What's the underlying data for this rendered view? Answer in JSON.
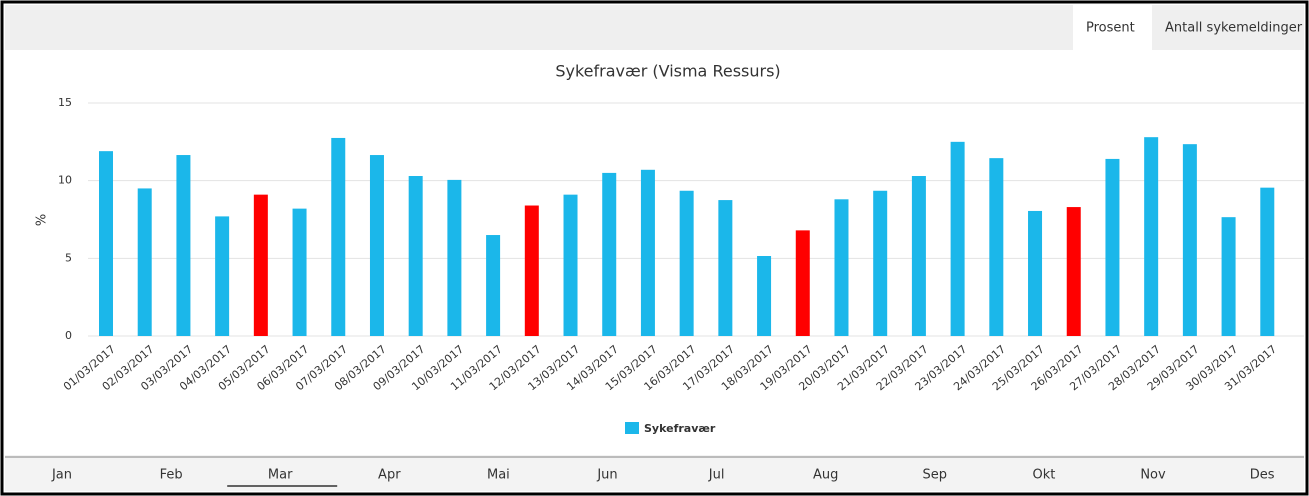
{
  "tabs": [
    "Prosent",
    "Antall sykemeldinger"
  ],
  "active_tab": 0,
  "months": [
    "Jan",
    "Feb",
    "Mar",
    "Apr",
    "Mai",
    "Jun",
    "Jul",
    "Aug",
    "Sep",
    "Okt",
    "Nov",
    "Des"
  ],
  "selected_month": 2,
  "chart_data": {
    "type": "bar",
    "title": "Sykefravær (Visma Ressurs)",
    "y_label": "%",
    "categories": [
      "01/03/2017",
      "02/03/2017",
      "03/03/2017",
      "04/03/2017",
      "05/03/2017",
      "06/03/2017",
      "07/03/2017",
      "08/03/2017",
      "09/03/2017",
      "10/03/2017",
      "11/03/2017",
      "12/03/2017",
      "13/03/2017",
      "14/03/2017",
      "15/03/2017",
      "16/03/2017",
      "17/03/2017",
      "18/03/2017",
      "19/03/2017",
      "20/03/2017",
      "21/03/2017",
      "22/03/2017",
      "23/03/2017",
      "24/03/2017",
      "25/03/2017",
      "26/03/2017",
      "27/03/2017",
      "28/03/2017",
      "29/03/2017",
      "30/03/2017",
      "31/03/2017"
    ],
    "series": [
      {
        "name": "Sykefravær",
        "color": "#1bb7ea",
        "colors": [
          "#1bb7ea",
          "#1bb7ea",
          "#1bb7ea",
          "#1bb7ea",
          "#ff0000",
          "#1bb7ea",
          "#1bb7ea",
          "#1bb7ea",
          "#1bb7ea",
          "#1bb7ea",
          "#1bb7ea",
          "#ff0000",
          "#1bb7ea",
          "#1bb7ea",
          "#1bb7ea",
          "#1bb7ea",
          "#1bb7ea",
          "#1bb7ea",
          "#ff0000",
          "#1bb7ea",
          "#1bb7ea",
          "#1bb7ea",
          "#1bb7ea",
          "#1bb7ea",
          "#1bb7ea",
          "#ff0000",
          "#1bb7ea",
          "#1bb7ea",
          "#1bb7ea",
          "#1bb7ea",
          "#1bb7ea"
        ],
        "values": [
          11.9,
          9.5,
          11.65,
          7.7,
          9.1,
          8.2,
          12.75,
          11.65,
          10.3,
          10.05,
          6.5,
          8.4,
          9.1,
          10.5,
          10.7,
          9.35,
          8.75,
          5.15,
          6.8,
          8.8,
          9.35,
          10.3,
          12.5,
          11.45,
          8.05,
          8.3,
          11.4,
          12.8,
          12.35,
          7.65,
          9.55
        ]
      }
    ],
    "ylim": [
      0,
      15
    ],
    "yticks": [
      0,
      5,
      10,
      15
    ],
    "grid": true,
    "legend": "bottom"
  }
}
